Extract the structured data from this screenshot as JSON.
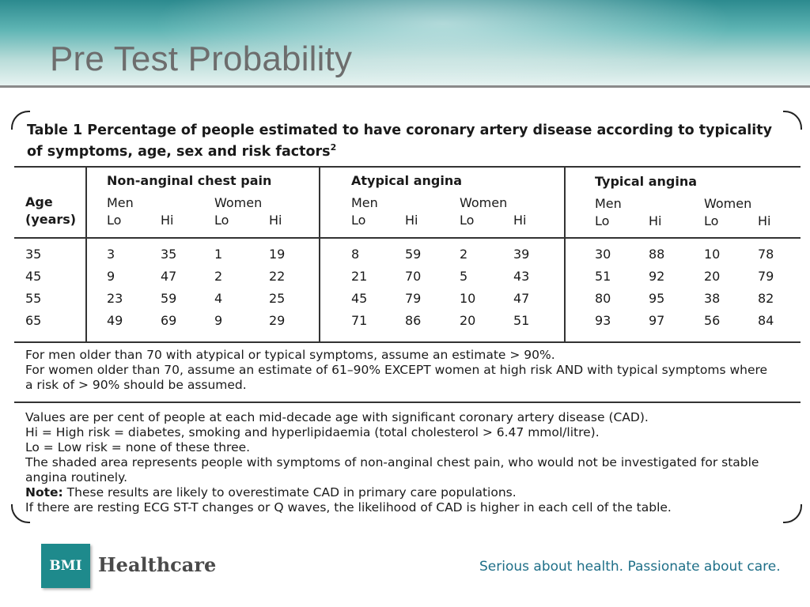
{
  "slide": {
    "title": "Pre Test Probability"
  },
  "table": {
    "caption": "Table 1 Percentage of people estimated to have coronary artery disease according to typicality of symptoms, age, sex and risk factors",
    "caption_sup": "2",
    "age_label_1": "Age",
    "age_label_2": "(years)",
    "groups": [
      "Non-anginal chest pain",
      "Atypical angina",
      "Typical angina"
    ],
    "sex_labels": [
      "Men",
      "Women"
    ],
    "risk_labels": [
      "Lo",
      "Hi"
    ],
    "ages": [
      "35",
      "45",
      "55",
      "65"
    ],
    "rows": [
      [
        "3",
        "35",
        "1",
        "19",
        "8",
        "59",
        "2",
        "39",
        "30",
        "88",
        "10",
        "78"
      ],
      [
        "9",
        "47",
        "2",
        "22",
        "21",
        "70",
        "5",
        "43",
        "51",
        "92",
        "20",
        "79"
      ],
      [
        "23",
        "59",
        "4",
        "25",
        "45",
        "79",
        "10",
        "47",
        "80",
        "95",
        "38",
        "82"
      ],
      [
        "49",
        "69",
        "9",
        "29",
        "71",
        "86",
        "20",
        "51",
        "93",
        "97",
        "56",
        "84"
      ]
    ]
  },
  "notes": {
    "line1": "For men older than 70 with atypical or typical symptoms, assume an estimate > 90%.",
    "line2": "For women older than 70, assume an estimate of 61–90% EXCEPT women at high risk AND with typical symptoms where",
    "line3": "a risk of > 90% should be assumed.",
    "line4": "Values are per cent of people at each mid-decade age with significant coronary artery disease (CAD).",
    "line5": "Hi = High risk = diabetes, smoking and hyperlipidaemia (total cholesterol > 6.47 mmol/litre).",
    "line6": "Lo = Low risk = none of these three.",
    "line7": "The shaded area represents people with symptoms of non-anginal chest pain, who would not be investigated for stable",
    "line8": "angina routinely.",
    "note_label": "Note:",
    "line9": " These results are likely to overestimate CAD in primary care populations.",
    "line10": "If there are resting ECG ST-T changes or Q waves, the likelihood of CAD is higher in each cell of the table."
  },
  "footer": {
    "logo_mark": "BMI",
    "logo_text": "Healthcare",
    "tagline": "Serious about health. Passionate about care.",
    "brand_color": "#1e8a8c",
    "tagline_color": "#1f6f88"
  }
}
